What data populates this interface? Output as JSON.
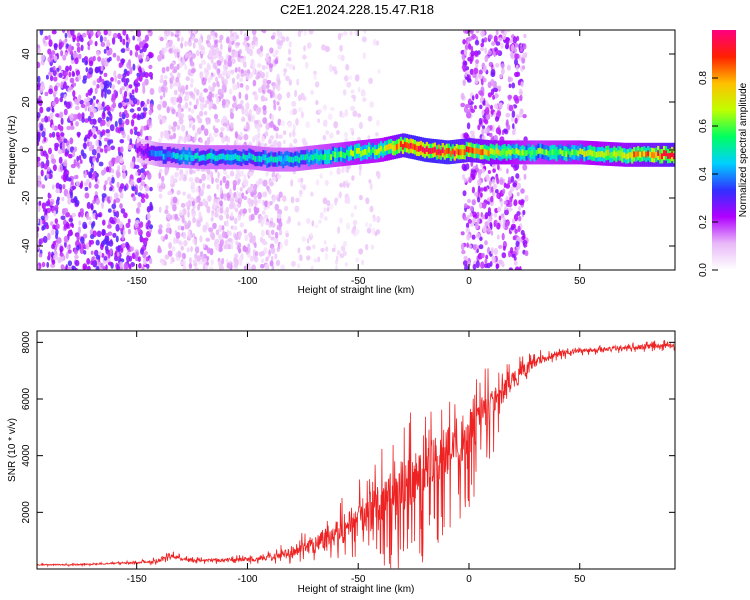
{
  "title": "C2E1.2024.228.15.47.R18",
  "chart_data": [
    {
      "type": "heatmap",
      "xlabel": "Height of straight line (km)",
      "ylabel": "Frequency (Hz)",
      "xlim": [
        -195,
        93
      ],
      "ylim": [
        -50,
        50
      ],
      "xticks": [
        -150,
        -100,
        -50,
        0,
        50
      ],
      "yticks": [
        -40,
        -20,
        0,
        20,
        40
      ],
      "colorbar": {
        "label": "Normalized spectral amplitude",
        "range": [
          0,
          1
        ],
        "ticks": [
          0.0,
          0.2,
          0.4,
          0.6,
          0.8
        ],
        "colors": [
          "#ffffff",
          "#e8b8f8",
          "#b000ff",
          "#3030ff",
          "#00d0ff",
          "#00ff60",
          "#c0ff00",
          "#ffc000",
          "#ff2000",
          "#ff0080"
        ]
      },
      "ridge": {
        "x": [
          -195,
          -150,
          -140,
          -120,
          -100,
          -90,
          -80,
          -70,
          -60,
          -50,
          -40,
          -35,
          -30,
          -25,
          -20,
          -10,
          0,
          10,
          20,
          30,
          50,
          70,
          93
        ],
        "center_hz": [
          0,
          0,
          -2,
          -3,
          -3,
          -4,
          -4,
          -3,
          -2,
          -1,
          0,
          1,
          2,
          1,
          0,
          -1,
          0,
          -1,
          -1,
          -1,
          -1,
          -2,
          -2
        ],
        "amplitude": [
          0.15,
          0.2,
          0.4,
          0.45,
          0.45,
          0.45,
          0.45,
          0.5,
          0.55,
          0.6,
          0.6,
          0.7,
          0.85,
          0.9,
          0.9,
          0.9,
          0.8,
          0.7,
          0.6,
          0.55,
          0.6,
          0.7,
          0.85
        ]
      },
      "scatter_regions": [
        {
          "x": [
            -195,
            -143
          ],
          "amplitude": 0.25,
          "coverage": "full"
        },
        {
          "x": [
            -140,
            -85
          ],
          "amplitude": 0.12,
          "coverage": "full"
        },
        {
          "x": [
            -85,
            -40
          ],
          "amplitude": 0.08,
          "coverage": "partial"
        },
        {
          "x": [
            -3,
            26
          ],
          "amplitude": 0.22,
          "coverage": "full"
        }
      ]
    },
    {
      "type": "line",
      "xlabel": "Height of straight line (km)",
      "ylabel": "SNR (10 * v/v)",
      "xlim": [
        -195,
        93
      ],
      "ylim": [
        0,
        8400
      ],
      "xticks": [
        -150,
        -100,
        -50,
        0,
        50
      ],
      "yticks": [
        2000,
        4000,
        6000,
        8000
      ],
      "series": [
        {
          "color": "#ee2222",
          "x": [
            -195,
            -180,
            -170,
            -160,
            -150,
            -140,
            -135,
            -130,
            -120,
            -110,
            -100,
            -95,
            -90,
            -85,
            -80,
            -75,
            -70,
            -65,
            -60,
            -55,
            -50,
            -45,
            -40,
            -35,
            -30,
            -25,
            -20,
            -15,
            -10,
            -5,
            0,
            5,
            10,
            15,
            20,
            25,
            30,
            40,
            50,
            60,
            70,
            80,
            93
          ],
          "y": [
            150,
            150,
            170,
            200,
            220,
            300,
            500,
            350,
            300,
            320,
            350,
            350,
            400,
            500,
            600,
            700,
            900,
            1100,
            1300,
            1500,
            1800,
            2000,
            2400,
            2700,
            3000,
            3200,
            3500,
            3800,
            4200,
            4500,
            4800,
            5300,
            5800,
            6300,
            6600,
            7000,
            7300,
            7600,
            7700,
            7750,
            7800,
            7850,
            7900
          ],
          "noise": [
            50,
            50,
            60,
            60,
            80,
            150,
            250,
            150,
            120,
            150,
            200,
            200,
            250,
            350,
            450,
            600,
            800,
            1000,
            1200,
            1400,
            1600,
            1800,
            2000,
            2200,
            2400,
            2400,
            2400,
            2400,
            2300,
            2200,
            2000,
            1800,
            1600,
            1200,
            900,
            600,
            400,
            250,
            200,
            200,
            200,
            200,
            200
          ]
        }
      ]
    }
  ]
}
